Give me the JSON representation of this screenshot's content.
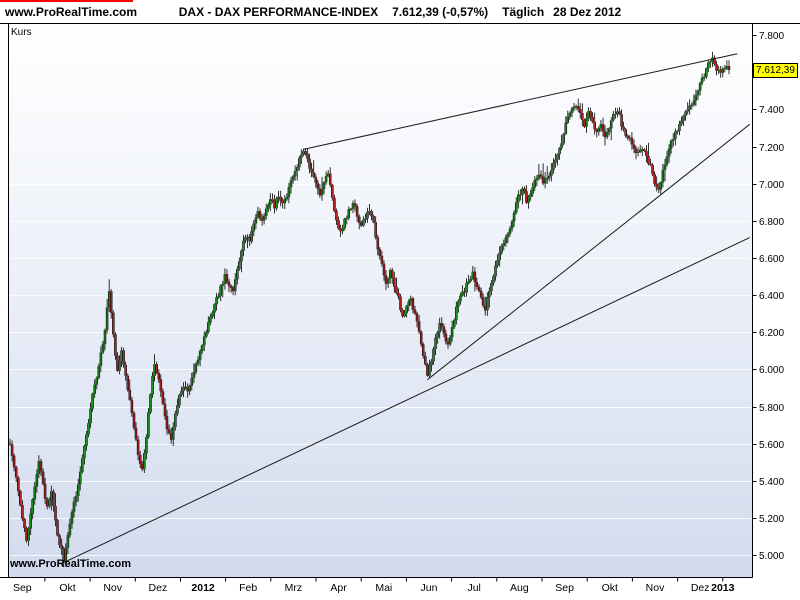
{
  "header": {
    "watermark": "www.ProRealTime.com",
    "instrument": "DAX - DAX PERFORMANCE-INDEX",
    "quote": "7.612,39 (-0,57%)",
    "timeframe": "Täglich",
    "date": "28 Dez 2012"
  },
  "chart": {
    "axis_label": "Kurs",
    "watermark": "www.ProRealTime.com",
    "last_price_label": "7.612,39",
    "colors": {
      "accent_red_line": "#ff0000",
      "price_tag_bg": "#ffff00",
      "bg_top": "#ffffff",
      "bg_mid": "#eef2f9",
      "bg_bottom": "#d2dbee",
      "grid": "#ffffff",
      "up": "#1a8c1a",
      "down": "#b22222",
      "wick": "#000000",
      "outline": "#000000",
      "trend": "#1a1a1a"
    }
  },
  "chart_data": {
    "type": "candlestick",
    "title": "DAX - DAX PERFORMANCE-INDEX",
    "timeframe": "Täglich",
    "date": "28 Dez 2012",
    "last_close": 7612.39,
    "change_pct": -0.57,
    "ylabel": "Kurs",
    "ylim": [
      4880,
      7860
    ],
    "grid": "horizontal",
    "y_ticks": [
      {
        "v": 7800,
        "label": "7.800"
      },
      {
        "v": 7600,
        "label": "7.600"
      },
      {
        "v": 7400,
        "label": "7.400"
      },
      {
        "v": 7200,
        "label": "7.200"
      },
      {
        "v": 7000,
        "label": "7.000"
      },
      {
        "v": 6800,
        "label": "6.800"
      },
      {
        "v": 6600,
        "label": "6.600"
      },
      {
        "v": 6400,
        "label": "6.400"
      },
      {
        "v": 6200,
        "label": "6.200"
      },
      {
        "v": 6000,
        "label": "6.000"
      },
      {
        "v": 5800,
        "label": "5.800"
      },
      {
        "v": 5600,
        "label": "5.600"
      },
      {
        "v": 5400,
        "label": "5.400"
      },
      {
        "v": 5200,
        "label": "5.200"
      },
      {
        "v": 5000,
        "label": "5.000"
      }
    ],
    "x_months": [
      {
        "label": "Sep",
        "bold": false
      },
      {
        "label": "Okt",
        "bold": false
      },
      {
        "label": "Nov",
        "bold": false
      },
      {
        "label": "Dez",
        "bold": false
      },
      {
        "label": "2012",
        "bold": true
      },
      {
        "label": "Feb",
        "bold": false
      },
      {
        "label": "Mrz",
        "bold": false
      },
      {
        "label": "Apr",
        "bold": false
      },
      {
        "label": "Mai",
        "bold": false
      },
      {
        "label": "Jun",
        "bold": false
      },
      {
        "label": "Jul",
        "bold": false
      },
      {
        "label": "Aug",
        "bold": false
      },
      {
        "label": "Sep",
        "bold": false
      },
      {
        "label": "Okt",
        "bold": false
      },
      {
        "label": "Nov",
        "bold": false
      },
      {
        "label": "Dez",
        "bold": false
      },
      {
        "label": "2013",
        "bold": true
      }
    ],
    "month_span_days": 21.875,
    "first_month_start_day": -5,
    "anchors": [
      [
        0,
        5600
      ],
      [
        2,
        5480
      ],
      [
        4,
        5350
      ],
      [
        6,
        5200
      ],
      [
        8,
        5080
      ],
      [
        10,
        5230
      ],
      [
        12,
        5380
      ],
      [
        14,
        5500
      ],
      [
        16,
        5380
      ],
      [
        18,
        5250
      ],
      [
        20,
        5350
      ],
      [
        22,
        5180
      ],
      [
        24,
        5060
      ],
      [
        26,
        4980
      ],
      [
        28,
        5100
      ],
      [
        30,
        5230
      ],
      [
        32,
        5330
      ],
      [
        34,
        5460
      ],
      [
        36,
        5600
      ],
      [
        38,
        5720
      ],
      [
        40,
        5860
      ],
      [
        42,
        5960
      ],
      [
        44,
        6080
      ],
      [
        46,
        6220
      ],
      [
        48,
        6420
      ],
      [
        50,
        6180
      ],
      [
        52,
        5990
      ],
      [
        54,
        6110
      ],
      [
        56,
        5960
      ],
      [
        58,
        5830
      ],
      [
        60,
        5680
      ],
      [
        62,
        5540
      ],
      [
        64,
        5470
      ],
      [
        66,
        5640
      ],
      [
        68,
        5880
      ],
      [
        70,
        6030
      ],
      [
        72,
        5940
      ],
      [
        74,
        5810
      ],
      [
        76,
        5690
      ],
      [
        78,
        5620
      ],
      [
        80,
        5770
      ],
      [
        82,
        5860
      ],
      [
        84,
        5920
      ],
      [
        86,
        5890
      ],
      [
        88,
        5940
      ],
      [
        90,
        6020
      ],
      [
        92,
        6100
      ],
      [
        94,
        6180
      ],
      [
        96,
        6240
      ],
      [
        98,
        6310
      ],
      [
        100,
        6380
      ],
      [
        102,
        6440
      ],
      [
        104,
        6500
      ],
      [
        106,
        6450
      ],
      [
        108,
        6420
      ],
      [
        110,
        6540
      ],
      [
        112,
        6650
      ],
      [
        114,
        6720
      ],
      [
        116,
        6680
      ],
      [
        118,
        6790
      ],
      [
        120,
        6850
      ],
      [
        122,
        6800
      ],
      [
        124,
        6870
      ],
      [
        126,
        6910
      ],
      [
        128,
        6880
      ],
      [
        130,
        6930
      ],
      [
        132,
        6890
      ],
      [
        134,
        6940
      ],
      [
        136,
        7010
      ],
      [
        138,
        7070
      ],
      [
        140,
        7130
      ],
      [
        142,
        7190
      ],
      [
        144,
        7130
      ],
      [
        146,
        7060
      ],
      [
        148,
        7000
      ],
      [
        150,
        6950
      ],
      [
        152,
        7010
      ],
      [
        154,
        7060
      ],
      [
        156,
        6920
      ],
      [
        158,
        6790
      ],
      [
        160,
        6740
      ],
      [
        162,
        6800
      ],
      [
        164,
        6850
      ],
      [
        166,
        6900
      ],
      [
        168,
        6830
      ],
      [
        170,
        6770
      ],
      [
        172,
        6820
      ],
      [
        174,
        6850
      ],
      [
        176,
        6780
      ],
      [
        178,
        6650
      ],
      [
        180,
        6560
      ],
      [
        182,
        6470
      ],
      [
        184,
        6530
      ],
      [
        186,
        6450
      ],
      [
        188,
        6380
      ],
      [
        190,
        6290
      ],
      [
        192,
        6340
      ],
      [
        194,
        6380
      ],
      [
        196,
        6290
      ],
      [
        198,
        6200
      ],
      [
        200,
        6080
      ],
      [
        202,
        5980
      ],
      [
        204,
        6050
      ],
      [
        206,
        6170
      ],
      [
        208,
        6260
      ],
      [
        210,
        6190
      ],
      [
        212,
        6130
      ],
      [
        214,
        6230
      ],
      [
        216,
        6330
      ],
      [
        218,
        6400
      ],
      [
        220,
        6430
      ],
      [
        222,
        6480
      ],
      [
        224,
        6520
      ],
      [
        226,
        6450
      ],
      [
        228,
        6380
      ],
      [
        230,
        6330
      ],
      [
        232,
        6430
      ],
      [
        234,
        6510
      ],
      [
        236,
        6590
      ],
      [
        238,
        6660
      ],
      [
        240,
        6720
      ],
      [
        242,
        6770
      ],
      [
        244,
        6850
      ],
      [
        246,
        6930
      ],
      [
        248,
        6980
      ],
      [
        250,
        6910
      ],
      [
        252,
        6960
      ],
      [
        254,
        7010
      ],
      [
        256,
        7050
      ],
      [
        258,
        7000
      ],
      [
        260,
        7040
      ],
      [
        262,
        7070
      ],
      [
        264,
        7130
      ],
      [
        266,
        7190
      ],
      [
        268,
        7270
      ],
      [
        270,
        7360
      ],
      [
        272,
        7410
      ],
      [
        274,
        7430
      ],
      [
        276,
        7370
      ],
      [
        278,
        7320
      ],
      [
        280,
        7390
      ],
      [
        282,
        7330
      ],
      [
        284,
        7270
      ],
      [
        286,
        7320
      ],
      [
        288,
        7260
      ],
      [
        290,
        7310
      ],
      [
        292,
        7360
      ],
      [
        294,
        7400
      ],
      [
        296,
        7320
      ],
      [
        298,
        7270
      ],
      [
        300,
        7240
      ],
      [
        302,
        7200
      ],
      [
        304,
        7160
      ],
      [
        306,
        7200
      ],
      [
        308,
        7150
      ],
      [
        310,
        7090
      ],
      [
        312,
        7010
      ],
      [
        314,
        6975
      ],
      [
        316,
        7070
      ],
      [
        318,
        7150
      ],
      [
        320,
        7220
      ],
      [
        322,
        7270
      ],
      [
        324,
        7320
      ],
      [
        326,
        7370
      ],
      [
        328,
        7410
      ],
      [
        330,
        7430
      ],
      [
        332,
        7470
      ],
      [
        334,
        7530
      ],
      [
        336,
        7590
      ],
      [
        338,
        7640
      ],
      [
        340,
        7668
      ],
      [
        342,
        7620
      ],
      [
        344,
        7595
      ],
      [
        346,
        7635
      ],
      [
        348,
        7612
      ]
    ],
    "trend_lines": [
      {
        "name": "long-term-support",
        "from": [
          26,
          4960
        ],
        "to": [
          358,
          6710
        ]
      },
      {
        "name": "medium-support",
        "from": [
          202,
          5945
        ],
        "to": [
          358,
          7320
        ]
      },
      {
        "name": "resistance",
        "from": [
          142,
          7185
        ],
        "to": [
          352,
          7700
        ]
      }
    ]
  }
}
